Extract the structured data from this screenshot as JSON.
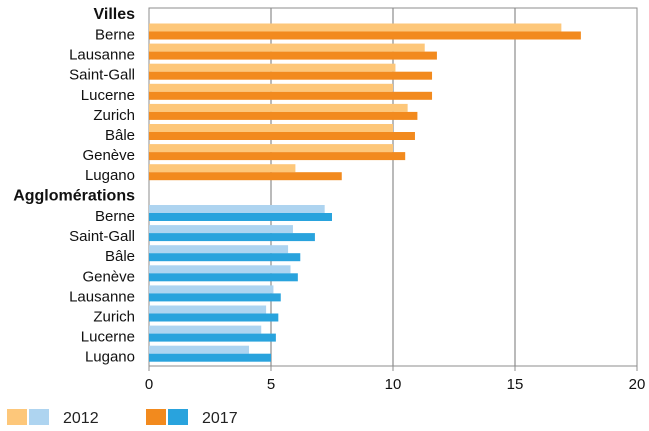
{
  "chart_data": {
    "type": "bar",
    "orientation": "horizontal",
    "xlim": [
      0,
      20
    ],
    "x_ticks": [
      "0",
      "5",
      "10",
      "15",
      "20"
    ],
    "grid": "vertical",
    "legend_position": "bottom-left",
    "series_colors": {
      "2012": {
        "villes": "#FDC77A",
        "agglomerations": "#AED4F0"
      },
      "2017": {
        "villes": "#F28A1E",
        "agglomerations": "#29A3DD"
      }
    },
    "legend": [
      {
        "label": "2012",
        "colors": [
          "#FDC77A",
          "#AED4F0"
        ]
      },
      {
        "label": "2017",
        "colors": [
          "#F28A1E",
          "#29A3DD"
        ]
      }
    ],
    "groups": [
      {
        "title": "Villes",
        "key": "villes",
        "categories": [
          "Berne",
          "Lausanne",
          "Saint-Gall",
          "Lucerne",
          "Zurich",
          "Bâle",
          "Genève",
          "Lugano"
        ],
        "series": [
          {
            "name": "2012",
            "values": [
              16.9,
              11.3,
              10.1,
              10.0,
              10.6,
              10.0,
              10.0,
              6.0
            ]
          },
          {
            "name": "2017",
            "values": [
              17.7,
              11.8,
              11.6,
              11.6,
              11.0,
              10.9,
              10.5,
              7.9
            ]
          }
        ]
      },
      {
        "title": "Agglomérations",
        "key": "agglomerations",
        "categories": [
          "Berne",
          "Saint-Gall",
          "Bâle",
          "Genève",
          "Lausanne",
          "Zurich",
          "Lucerne",
          "Lugano"
        ],
        "series": [
          {
            "name": "2012",
            "values": [
              7.2,
              5.9,
              5.7,
              5.8,
              5.1,
              4.8,
              4.6,
              4.1
            ]
          },
          {
            "name": "2017",
            "values": [
              7.5,
              6.8,
              6.2,
              6.1,
              5.4,
              5.3,
              5.2,
              5.0
            ]
          }
        ]
      }
    ]
  }
}
